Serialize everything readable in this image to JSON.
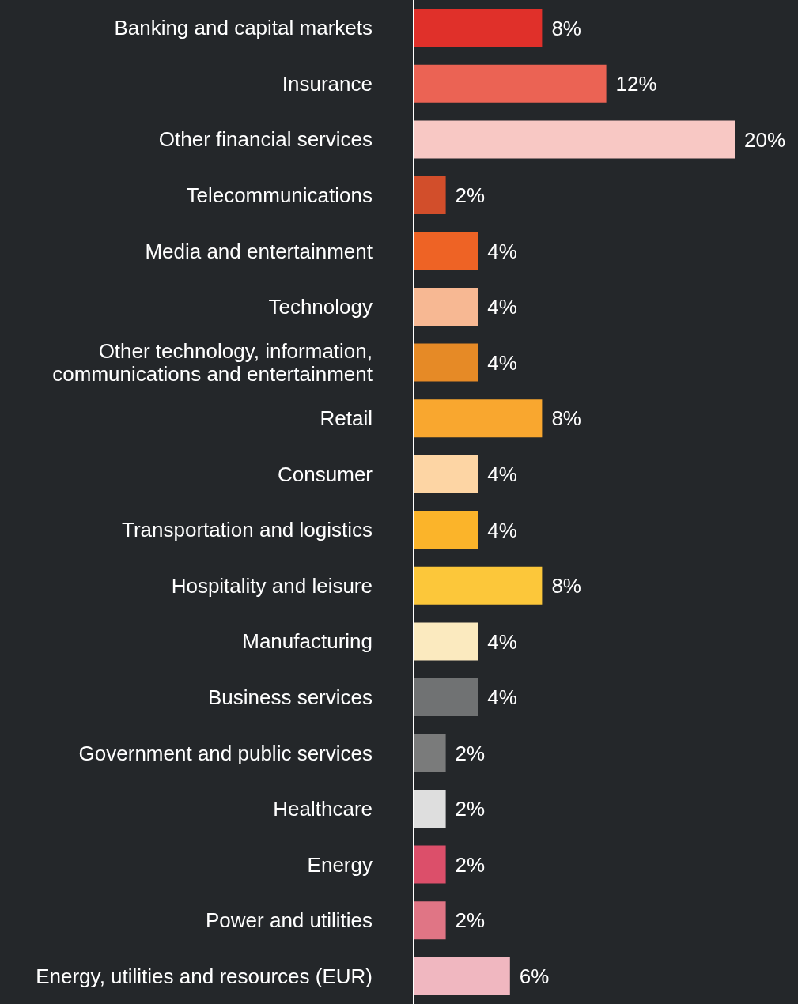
{
  "chart_data": {
    "type": "bar",
    "orientation": "horizontal",
    "categories": [
      "Banking and capital markets",
      "Insurance",
      "Other financial services",
      "Telecommunications",
      "Media and entertainment",
      "Technology",
      "Other technology, information, communications and entertainment",
      "Retail",
      "Consumer",
      "Transportation and logistics",
      "Hospitality and leisure",
      "Manufacturing",
      "Business services",
      "Government and public services",
      "Healthcare",
      "Energy",
      "Power and utilities",
      "Energy, utilities and resources (EUR)"
    ],
    "values": [
      8,
      12,
      20,
      2,
      4,
      4,
      4,
      8,
      4,
      4,
      8,
      4,
      4,
      2,
      2,
      2,
      2,
      6
    ],
    "value_labels": [
      "8%",
      "12%",
      "20%",
      "2%",
      "4%",
      "4%",
      "4%",
      "8%",
      "4%",
      "4%",
      "8%",
      "4%",
      "4%",
      "2%",
      "2%",
      "2%",
      "2%",
      "6%"
    ],
    "colors": [
      "#e0302a",
      "#eb6354",
      "#f8c8c4",
      "#d24e2b",
      "#ee6325",
      "#f7b893",
      "#e68a26",
      "#f9a72f",
      "#fdd5a4",
      "#fbb42a",
      "#fcc73a",
      "#fbeabf",
      "#707273",
      "#7a7b7b",
      "#dedede",
      "#dc4f6a",
      "#e07585",
      "#f0b7c0"
    ],
    "grid": false,
    "legend": false
  }
}
